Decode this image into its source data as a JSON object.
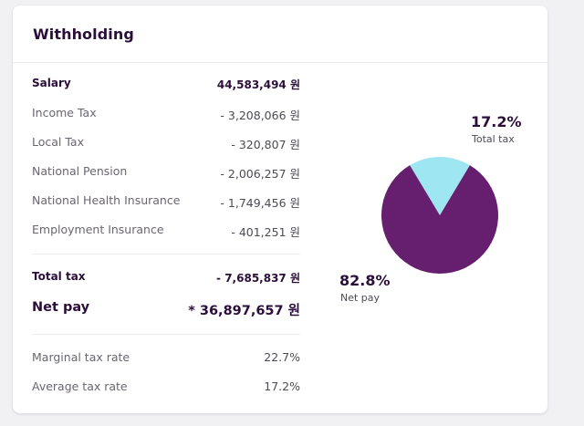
{
  "card": {
    "title": "Withholding"
  },
  "rows": {
    "salary": {
      "label": "Salary",
      "value": "44,583,494 원"
    },
    "income_tax": {
      "label": "Income Tax",
      "value": "- 3,208,066 원"
    },
    "local_tax": {
      "label": "Local Tax",
      "value": "- 320,807 원"
    },
    "pension": {
      "label": "National Pension",
      "value": "- 2,006,257 원"
    },
    "health": {
      "label": "National Health Insurance",
      "value": "- 1,749,456 원"
    },
    "employment": {
      "label": "Employment Insurance",
      "value": "- 401,251 원"
    },
    "total_tax": {
      "label": "Total tax",
      "value": "- 7,685,837 원"
    },
    "net_pay": {
      "label": "Net pay",
      "value": "* 36,897,657 원"
    },
    "marginal": {
      "label": "Marginal tax rate",
      "value": "22.7%"
    },
    "average": {
      "label": "Average tax rate",
      "value": "17.2%"
    }
  },
  "chart_data": {
    "type": "pie",
    "slices": [
      {
        "name": "Total tax",
        "value": 17.2,
        "percent_label": "17.2%",
        "color": "#9fe6f3"
      },
      {
        "name": "Net pay",
        "value": 82.8,
        "percent_label": "82.8%",
        "color": "#661e6e"
      }
    ]
  },
  "colors": {
    "accent_dark": "#661e6e",
    "accent_light": "#9fe6f3",
    "text_dark": "#2b0f3a"
  }
}
